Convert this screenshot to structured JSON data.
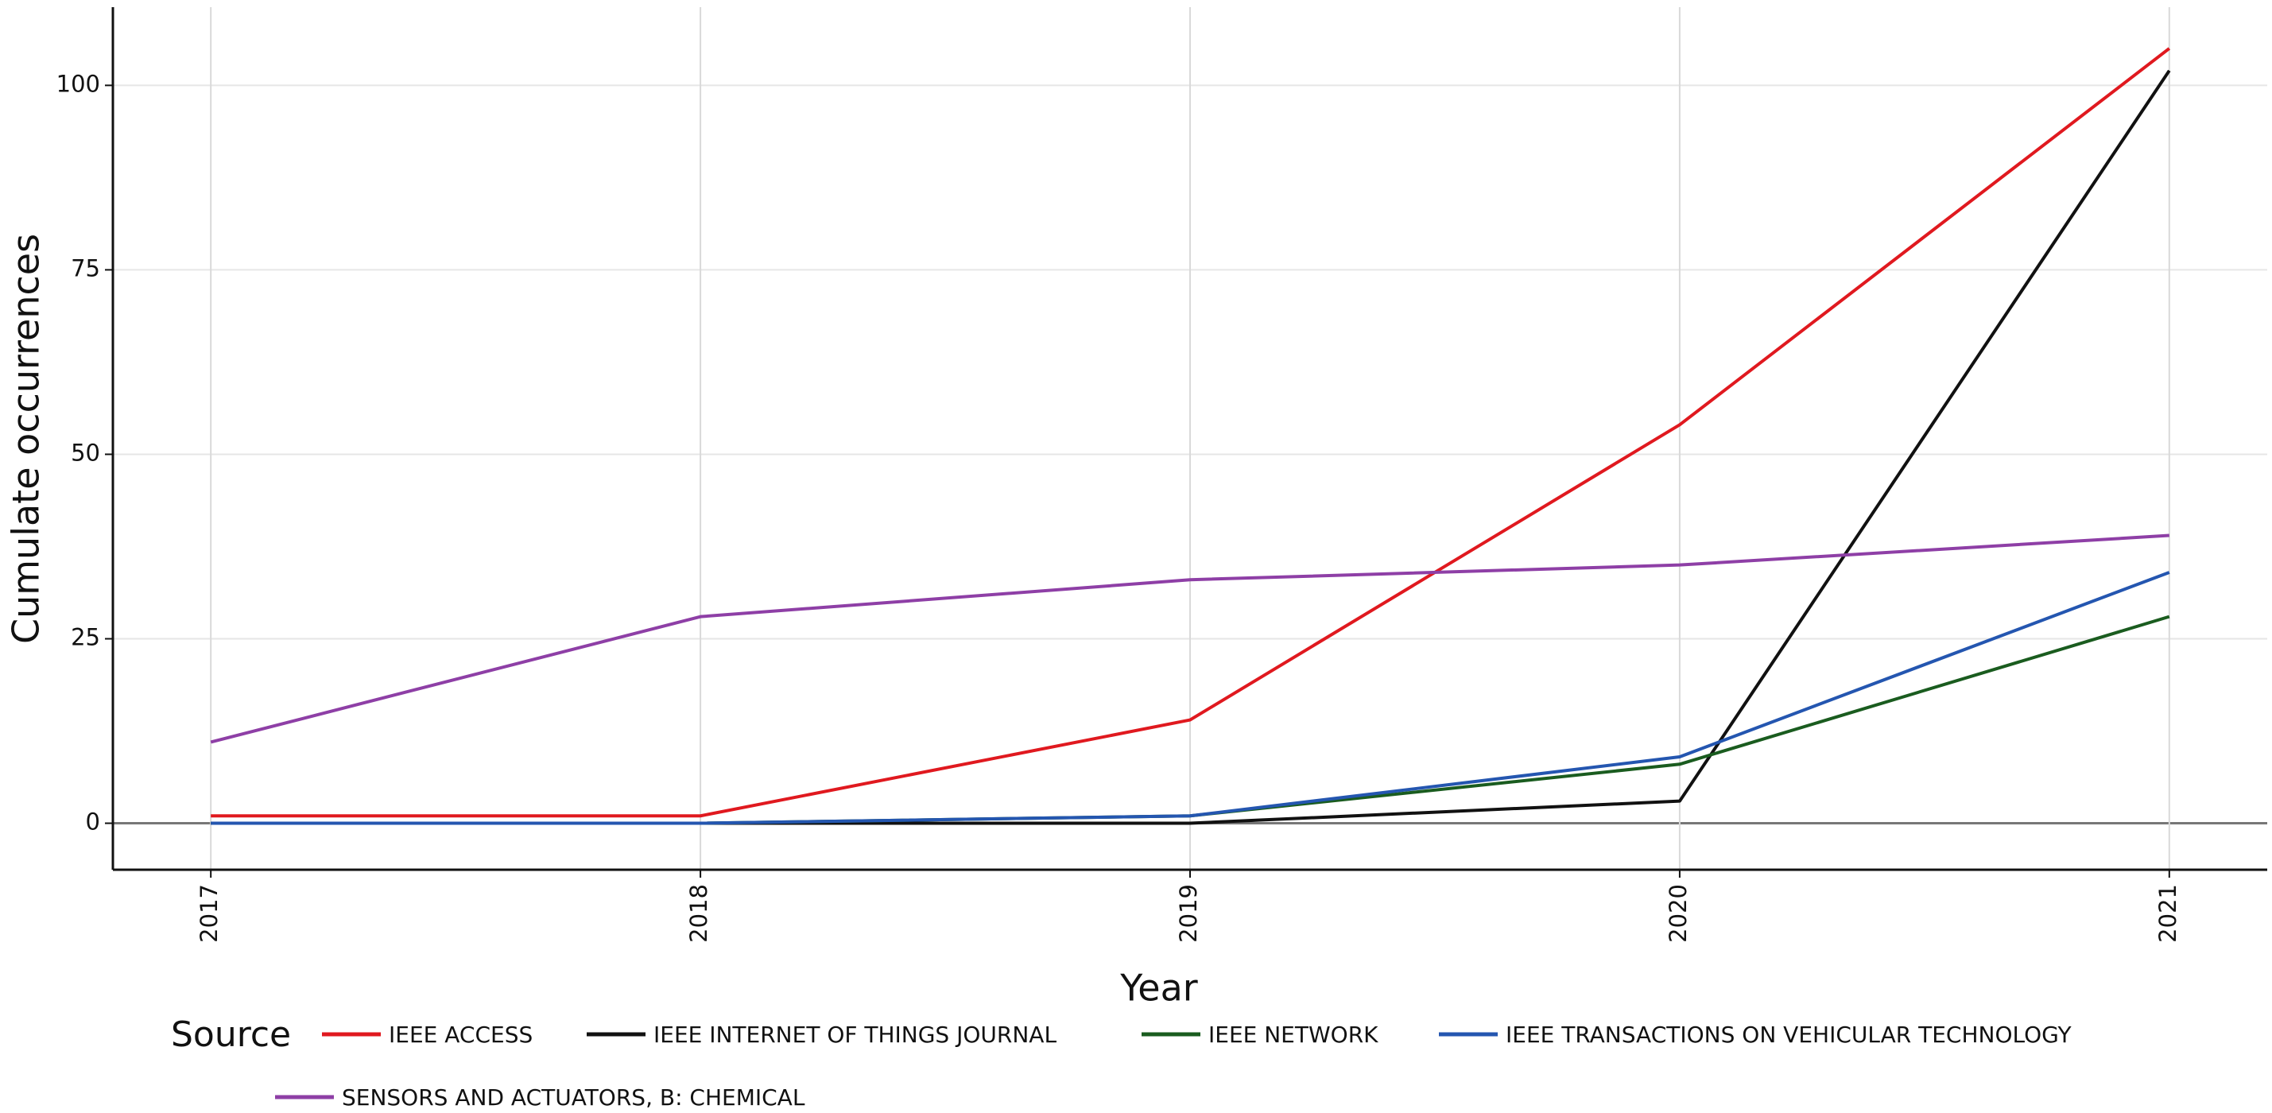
{
  "chart_data": {
    "type": "line",
    "x_label": "Year",
    "y_label": "Cumulate occurrences",
    "x": [
      2017,
      2018,
      2019,
      2020,
      2021
    ],
    "xlim": [
      2016.8,
      2021.2
    ],
    "xticks": [
      2017,
      2018,
      2019,
      2020,
      2021
    ],
    "ylim": [
      -6.3,
      110.6
    ],
    "yticks": [
      0,
      25,
      50,
      75,
      100
    ],
    "grid": true,
    "legend_title": "Source",
    "series": [
      {
        "name": "IEEE ACCESS",
        "color": "#e0191f",
        "values": [
          1,
          1,
          14,
          54,
          105
        ]
      },
      {
        "name": "IEEE INTERNET OF THINGS JOURNAL",
        "color": "#111111",
        "values": [
          0,
          0,
          0,
          3,
          102
        ]
      },
      {
        "name": "IEEE NETWORK",
        "color": "#1a5c1f",
        "values": [
          0,
          0,
          1,
          8,
          28
        ]
      },
      {
        "name": "IEEE TRANSACTIONS ON VEHICULAR TECHNOLOGY",
        "color": "#2456b0",
        "values": [
          0,
          0,
          1,
          9,
          34
        ]
      },
      {
        "name": "SENSORS AND ACTUATORS, B: CHEMICAL",
        "color": "#8e3fa6",
        "values": [
          11,
          28,
          33,
          35,
          39
        ]
      }
    ]
  }
}
